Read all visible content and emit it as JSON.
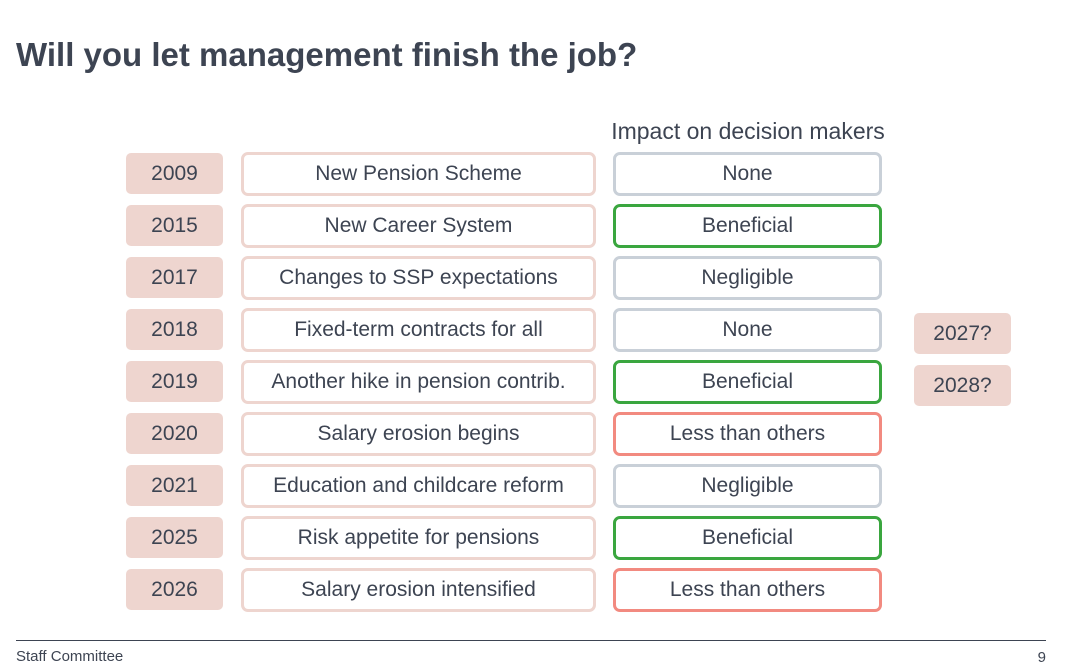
{
  "title": "Will you let management finish the job?",
  "impact_header": "Impact on decision makers",
  "colors": {
    "Beneficial": "#3aa63f",
    "None": "#c9d0d8",
    "Negligible": "#c9d0d8",
    "Less than others": "#f28a80"
  },
  "timeline": [
    {
      "year": "2009",
      "event": "New Pension Scheme",
      "impact": "None"
    },
    {
      "year": "2015",
      "event": "New Career System",
      "impact": "Beneficial"
    },
    {
      "year": "2017",
      "event": "Changes to SSP expectations",
      "impact": "Negligible"
    },
    {
      "year": "2018",
      "event": "Fixed-term contracts for all",
      "impact": "None"
    },
    {
      "year": "2019",
      "event": "Another hike in pension contrib.",
      "impact": "Beneficial"
    },
    {
      "year": "2020",
      "event": "Salary erosion begins",
      "impact": "Less than others"
    },
    {
      "year": "2021",
      "event": "Education and childcare reform",
      "impact": "Negligible"
    },
    {
      "year": "2025",
      "event": "Risk appetite for pensions",
      "impact": "Beneficial"
    },
    {
      "year": "2026",
      "event": "Salary erosion intensified",
      "impact": "Less than others"
    }
  ],
  "future_years": [
    "2027?",
    "2028?"
  ],
  "footer": {
    "left": "Staff Committee",
    "page_number": "9"
  }
}
